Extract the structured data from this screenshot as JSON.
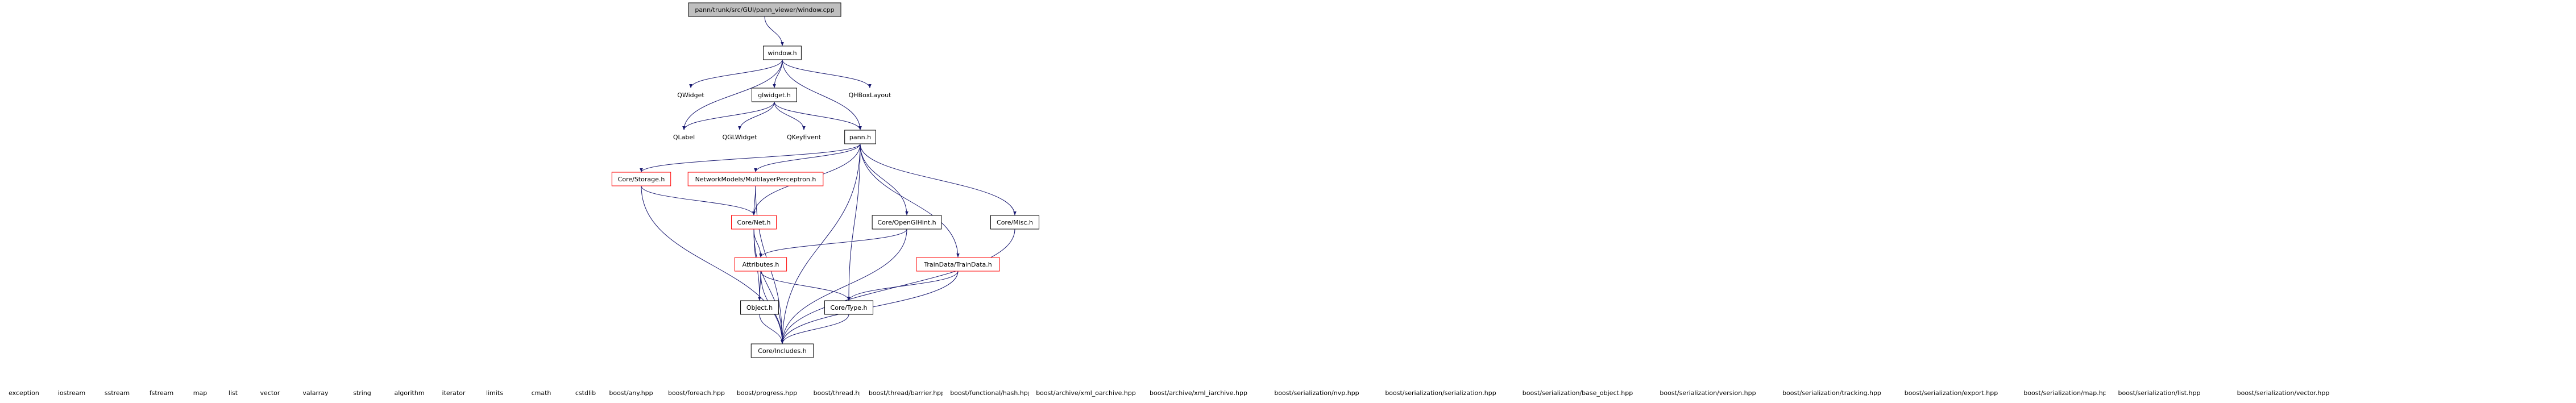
{
  "diagram": {
    "nodes": [
      {
        "id": "root",
        "label": "pann/trunk/src/GUI/pann_viewer/window.cpp",
        "style": "root"
      },
      {
        "id": "window_h",
        "label": "window.h",
        "style": "normal"
      },
      {
        "id": "QWidget",
        "label": "QWidget",
        "style": "plain"
      },
      {
        "id": "QHBoxLayout",
        "label": "QHBoxLayout",
        "style": "plain"
      },
      {
        "id": "glwidget_h",
        "label": "glwidget.h",
        "style": "normal"
      },
      {
        "id": "QLabel",
        "label": "QLabel",
        "style": "plain"
      },
      {
        "id": "QGLWidget",
        "label": "QGLWidget",
        "style": "plain"
      },
      {
        "id": "QKeyEvent",
        "label": "QKeyEvent",
        "style": "plain"
      },
      {
        "id": "pann_h",
        "label": "pann.h",
        "style": "normal"
      },
      {
        "id": "CoreStorage",
        "label": "Core/Storage.h",
        "style": "red"
      },
      {
        "id": "NetworkModels",
        "label": "NetworkModels/MultilayerPerceptron.h",
        "style": "red"
      },
      {
        "id": "CoreNet",
        "label": "Core/Net.h",
        "style": "red"
      },
      {
        "id": "CoreOpenGlHint",
        "label": "Core/OpenGlHint.h",
        "style": "normal"
      },
      {
        "id": "CoreMisc",
        "label": "Core/Misc.h",
        "style": "normal"
      },
      {
        "id": "Attributes",
        "label": "Attributes.h",
        "style": "red"
      },
      {
        "id": "TrainData",
        "label": "TrainData/TrainData.h",
        "style": "red"
      },
      {
        "id": "Object",
        "label": "Object.h",
        "style": "normal"
      },
      {
        "id": "CoreType",
        "label": "Core/Type.h",
        "style": "normal"
      },
      {
        "id": "CoreIncludes",
        "label": "Core/Includes.h",
        "style": "normal"
      },
      {
        "id": "b0",
        "label": "exception",
        "style": "plain"
      },
      {
        "id": "b1",
        "label": "iostream",
        "style": "plain"
      },
      {
        "id": "b2",
        "label": "sstream",
        "style": "plain"
      },
      {
        "id": "b3",
        "label": "fstream",
        "style": "plain"
      },
      {
        "id": "b4",
        "label": "map",
        "style": "plain"
      },
      {
        "id": "b5",
        "label": "list",
        "style": "plain"
      },
      {
        "id": "b6",
        "label": "vector",
        "style": "plain"
      },
      {
        "id": "b7",
        "label": "valarray",
        "style": "plain"
      },
      {
        "id": "b8",
        "label": "string",
        "style": "plain"
      },
      {
        "id": "b9",
        "label": "algorithm",
        "style": "plain"
      },
      {
        "id": "b10",
        "label": "iterator",
        "style": "plain"
      },
      {
        "id": "b11",
        "label": "limits",
        "style": "plain"
      },
      {
        "id": "b12",
        "label": "cmath",
        "style": "plain"
      },
      {
        "id": "b13",
        "label": "cstdlib",
        "style": "plain"
      },
      {
        "id": "b14",
        "label": "boost/any.hpp",
        "style": "plain"
      },
      {
        "id": "b15",
        "label": "boost/foreach.hpp",
        "style": "plain"
      },
      {
        "id": "b16",
        "label": "boost/progress.hpp",
        "style": "plain"
      },
      {
        "id": "b17",
        "label": "boost/thread.hpp",
        "style": "plain"
      },
      {
        "id": "b18",
        "label": "boost/thread/barrier.hpp",
        "style": "plain"
      },
      {
        "id": "b19",
        "label": "boost/functional/hash.hpp",
        "style": "plain"
      },
      {
        "id": "b20",
        "label": "boost/archive/xml_oarchive.hpp",
        "style": "plain"
      },
      {
        "id": "b21",
        "label": "boost/archive/xml_iarchive.hpp",
        "style": "plain"
      },
      {
        "id": "b22",
        "label": "boost/serialization/nvp.hpp",
        "style": "plain"
      },
      {
        "id": "b23",
        "label": "boost/serialization/serialization.hpp",
        "style": "plain"
      },
      {
        "id": "b24",
        "label": "boost/serialization/base_object.hpp",
        "style": "plain"
      },
      {
        "id": "b25",
        "label": "boost/serialization/version.hpp",
        "style": "plain"
      },
      {
        "id": "b26",
        "label": "boost/serialization/tracking.hpp",
        "style": "plain"
      },
      {
        "id": "b27",
        "label": "boost/serialization/export.hpp",
        "style": "plain"
      },
      {
        "id": "b28",
        "label": "boost/serialization/map.hpp",
        "style": "plain"
      },
      {
        "id": "b29",
        "label": "boost/serialization/list.hpp",
        "style": "plain"
      },
      {
        "id": "b30",
        "label": "boost/serialization/vector.hpp",
        "style": "plain"
      }
    ],
    "edges": [
      [
        "root",
        "window_h"
      ],
      [
        "window_h",
        "QWidget"
      ],
      [
        "window_h",
        "QHBoxLayout"
      ],
      [
        "window_h",
        "glwidget_h"
      ],
      [
        "window_h",
        "QLabel"
      ],
      [
        "window_h",
        "pann_h"
      ],
      [
        "glwidget_h",
        "QLabel"
      ],
      [
        "glwidget_h",
        "QGLWidget"
      ],
      [
        "glwidget_h",
        "QKeyEvent"
      ],
      [
        "glwidget_h",
        "pann_h"
      ],
      [
        "pann_h",
        "CoreStorage"
      ],
      [
        "pann_h",
        "NetworkModels"
      ],
      [
        "pann_h",
        "CoreNet"
      ],
      [
        "pann_h",
        "CoreOpenGlHint"
      ],
      [
        "pann_h",
        "CoreMisc"
      ],
      [
        "pann_h",
        "TrainData"
      ],
      [
        "pann_h",
        "CoreType"
      ],
      [
        "pann_h",
        "CoreIncludes"
      ],
      [
        "CoreStorage",
        "CoreNet"
      ],
      [
        "CoreStorage",
        "CoreIncludes"
      ],
      [
        "NetworkModels",
        "CoreNet"
      ],
      [
        "NetworkModels",
        "CoreIncludes"
      ],
      [
        "CoreNet",
        "Attributes"
      ],
      [
        "CoreNet",
        "Object"
      ],
      [
        "CoreNet",
        "CoreIncludes"
      ],
      [
        "CoreOpenGlHint",
        "Attributes"
      ],
      [
        "CoreOpenGlHint",
        "CoreIncludes"
      ],
      [
        "CoreMisc",
        "CoreIncludes"
      ],
      [
        "Attributes",
        "Object"
      ],
      [
        "Attributes",
        "CoreType"
      ],
      [
        "Attributes",
        "CoreIncludes"
      ],
      [
        "TrainData",
        "CoreType"
      ],
      [
        "TrainData",
        "CoreIncludes"
      ],
      [
        "Object",
        "CoreIncludes"
      ],
      [
        "CoreType",
        "CoreIncludes"
      ]
    ],
    "edge_color": "#191970",
    "root_fill": "#bfbfbf",
    "red_border": "#ff0000",
    "normal_border": "#000000"
  }
}
